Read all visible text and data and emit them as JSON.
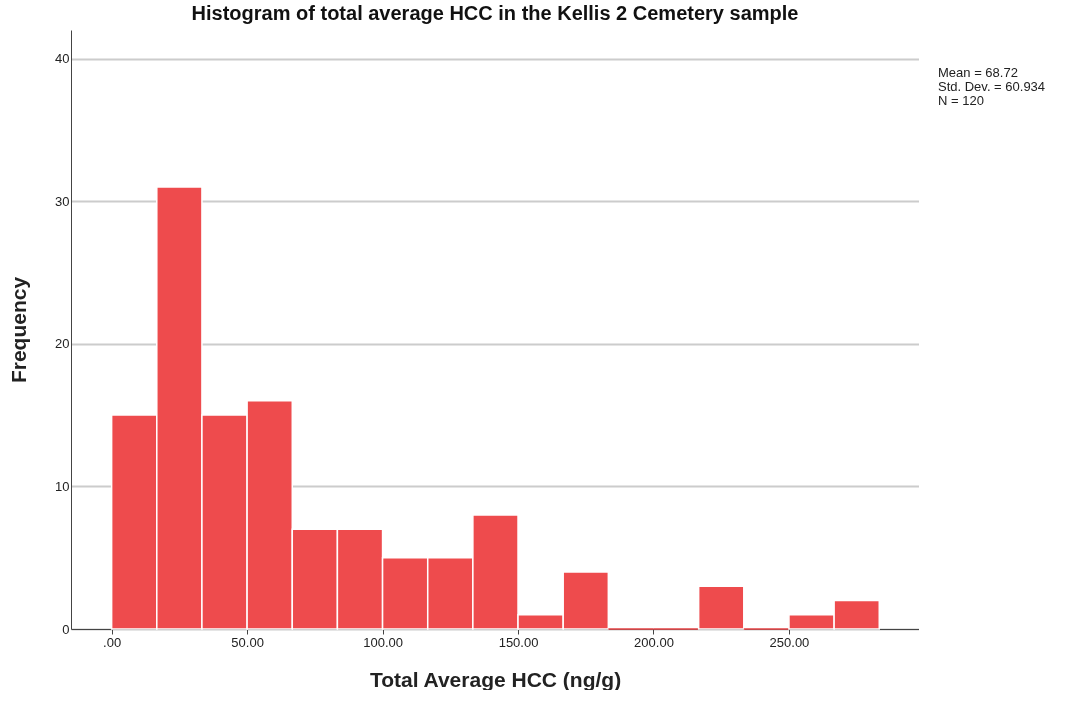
{
  "chart_data": {
    "type": "histogram",
    "title": "Histogram of total average HCC in the Kellis 2 Cemetery sample",
    "xlabel": "Total Average HCC (ng/g)",
    "ylabel": "Frequency",
    "bins": [
      0,
      16.67,
      33.33,
      50,
      66.67,
      83.33,
      100,
      116.67,
      133.33,
      150,
      166.67,
      183.33,
      200,
      216.67,
      233.33,
      250,
      266.67,
      283.33
    ],
    "values": [
      15,
      31,
      15,
      16,
      7,
      7,
      5,
      5,
      8,
      1,
      4,
      0,
      0,
      3,
      0,
      1,
      2
    ],
    "color": "#ee4b4d",
    "xlim": [
      -15,
      298
    ],
    "xticks": [
      {
        "value": 0,
        "label": ".00"
      },
      {
        "value": 50,
        "label": "50.00"
      },
      {
        "value": 100,
        "label": "100.00"
      },
      {
        "value": 150,
        "label": "150.00"
      },
      {
        "value": 200,
        "label": "200.00"
      },
      {
        "value": 250,
        "label": "250.00"
      }
    ],
    "ylim": [
      0,
      42
    ],
    "yticks": [
      0,
      10,
      20,
      30,
      40
    ],
    "grid": "y",
    "annotations": [
      "Mean = 68.72",
      "Std. Dev. = 60.934",
      "N = 120"
    ]
  }
}
